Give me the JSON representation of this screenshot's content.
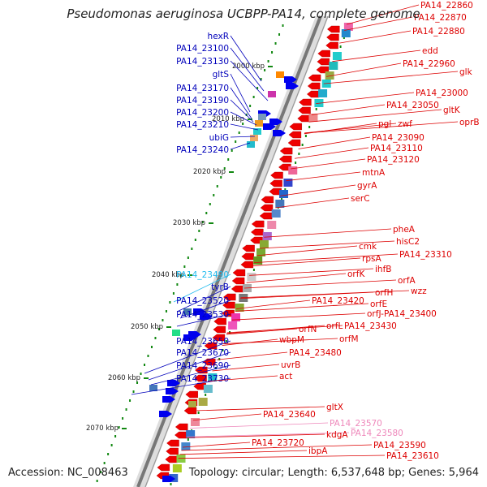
{
  "title": "Pseudomonas aeruginosa UCBPP-PA14, complete genome",
  "accession": "Accession: NC_008463",
  "summary": "Topology: circular; Length: 6,537,648 bp; Genes: 5,964",
  "colors": {
    "forward_label": "#0000bb",
    "reverse_label": "#dd0000",
    "highlight_forward": "#22bbee",
    "highlight_reverse": "#ee88bb",
    "forward_gene": "#0000ee",
    "reverse_gene": "#ee0000",
    "backbone": "#888888",
    "tick": "#118811"
  },
  "kbp_ticks": [
    "2000 kbp",
    "2010 kbp",
    "2020 kbp",
    "2030 kbp",
    "2040 kbp",
    "2050 kbp",
    "2060 kbp",
    "2070 kbp"
  ],
  "left_labels": [
    {
      "text": "hexR",
      "highlight": false
    },
    {
      "text": "PA14_23100",
      "highlight": false
    },
    {
      "text": "PA14_23130",
      "highlight": false
    },
    {
      "text": "gltS",
      "highlight": false
    },
    {
      "text": "PA14_23170",
      "highlight": false
    },
    {
      "text": "PA14_23190",
      "highlight": false
    },
    {
      "text": "PA14_23200",
      "highlight": false
    },
    {
      "text": "PA14_23210",
      "highlight": false
    },
    {
      "text": "ubiG",
      "highlight": false
    },
    {
      "text": "PA14_23240",
      "highlight": false
    },
    {
      "text": "PA14_23490",
      "highlight": true
    },
    {
      "text": "tyrB",
      "highlight": false
    },
    {
      "text": "PA14_23520",
      "highlight": false
    },
    {
      "text": "PA14_23530",
      "highlight": false
    },
    {
      "text": "PA14_23650",
      "highlight": false
    },
    {
      "text": "PA14_23670",
      "highlight": false
    },
    {
      "text": "PA14_23690",
      "highlight": false
    },
    {
      "text": "PA14_23730",
      "highlight": false
    }
  ],
  "right_labels": [
    {
      "text": "PA14_22860",
      "highlight": false
    },
    {
      "text": "PA14_22870",
      "highlight": false
    },
    {
      "text": "PA14_22880",
      "highlight": false
    },
    {
      "text": "edd",
      "highlight": false
    },
    {
      "text": "PA14_22960",
      "highlight": false
    },
    {
      "text": "glk",
      "highlight": false
    },
    {
      "text": "PA14_23000",
      "highlight": false
    },
    {
      "text": "PA14_23050",
      "highlight": false
    },
    {
      "text": "gltK",
      "highlight": false
    },
    {
      "text": "oprB",
      "highlight": false
    },
    {
      "text": "pgl",
      "highlight": false
    },
    {
      "text": "zwf",
      "highlight": false
    },
    {
      "text": "PA14_23090",
      "highlight": false
    },
    {
      "text": "PA14_23110",
      "highlight": false
    },
    {
      "text": "PA14_23120",
      "highlight": false
    },
    {
      "text": "mtnA",
      "highlight": false
    },
    {
      "text": "gyrA",
      "highlight": false
    },
    {
      "text": "serC",
      "highlight": false
    },
    {
      "text": "pheA",
      "highlight": false
    },
    {
      "text": "hisC2",
      "highlight": false
    },
    {
      "text": "cmk",
      "highlight": false
    },
    {
      "text": "PA14_23310",
      "highlight": false
    },
    {
      "text": "rpsA",
      "highlight": false
    },
    {
      "text": "ihfB",
      "highlight": false
    },
    {
      "text": "orfK",
      "highlight": false
    },
    {
      "text": "orfA",
      "highlight": false
    },
    {
      "text": "wzz",
      "highlight": false
    },
    {
      "text": "orfH",
      "highlight": false
    },
    {
      "text": "PA14_23420",
      "highlight": false
    },
    {
      "text": "orfE",
      "highlight": false
    },
    {
      "text": "orfJ-PA14_23400",
      "highlight": false
    },
    {
      "text": "orfN",
      "highlight": false
    },
    {
      "text": "orfL",
      "highlight": false
    },
    {
      "text": "PA14_23430",
      "highlight": false
    },
    {
      "text": "wbpM",
      "highlight": false
    },
    {
      "text": "orfM",
      "highlight": false
    },
    {
      "text": "PA14_23480",
      "highlight": false
    },
    {
      "text": "uvrB",
      "highlight": false
    },
    {
      "text": "act",
      "highlight": false
    },
    {
      "text": "gltX",
      "highlight": false
    },
    {
      "text": "PA14_23640",
      "highlight": false
    },
    {
      "text": "PA14_23570",
      "highlight": true
    },
    {
      "text": "PA14_23580",
      "highlight": true
    },
    {
      "text": "kdgA",
      "highlight": false
    },
    {
      "text": "PA14_23590",
      "highlight": false
    },
    {
      "text": "PA14_23720",
      "highlight": false
    },
    {
      "text": "ibpA",
      "highlight": false
    },
    {
      "text": "PA14_23610",
      "highlight": false
    }
  ]
}
